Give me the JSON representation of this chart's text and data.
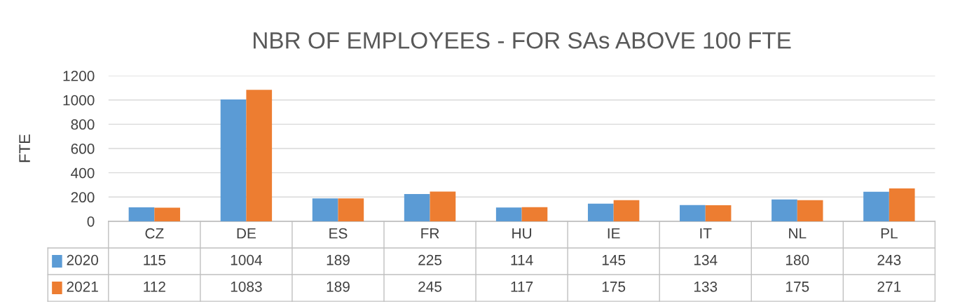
{
  "chart_data": {
    "type": "bar",
    "title": "NBR OF EMPLOYEES - FOR SAs ABOVE 100 FTE",
    "ylabel": "FTE",
    "categories": [
      "CZ",
      "DE",
      "ES",
      "FR",
      "HU",
      "IE",
      "IT",
      "NL",
      "PL"
    ],
    "series": [
      {
        "name": "2020",
        "color": "#5b9bd5",
        "values": [
          115,
          1004,
          189,
          225,
          114,
          145,
          134,
          180,
          243
        ]
      },
      {
        "name": "2021",
        "color": "#ed7d31",
        "values": [
          112,
          1083,
          189,
          245,
          117,
          175,
          133,
          175,
          271
        ]
      }
    ],
    "ylim": [
      0,
      1200
    ],
    "yticks": [
      0,
      200,
      400,
      600,
      800,
      1000,
      1200
    ],
    "grid": "y",
    "data_labels": true,
    "legend": "bottom left"
  }
}
